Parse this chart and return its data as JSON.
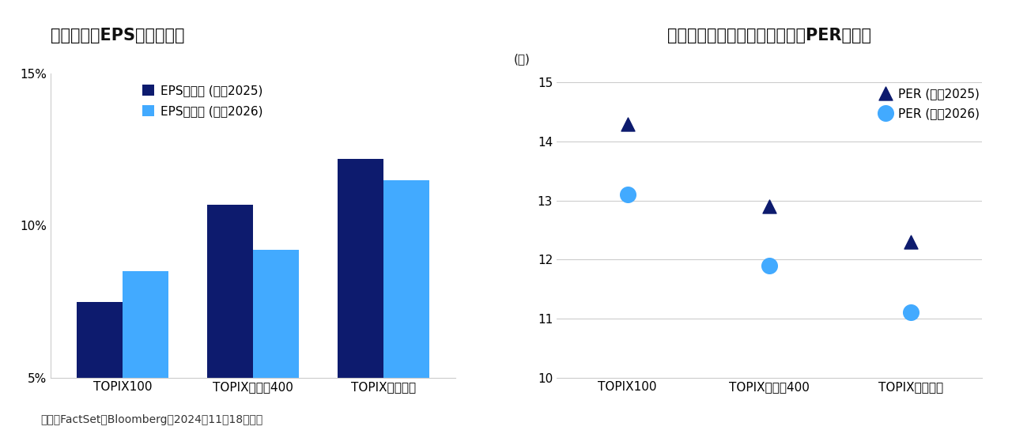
{
  "bar_categories": [
    "TOPIX100",
    "TOPIXミッド400",
    "TOPIXスモール"
  ],
  "eps_2025": [
    7.5,
    10.7,
    12.2
  ],
  "eps_2026": [
    8.5,
    9.2,
    11.5
  ],
  "bar_ylim": [
    5,
    15
  ],
  "bar_yticks": [
    5,
    10,
    15
  ],
  "bar_ytick_labels": [
    "5%",
    "10%",
    "15%"
  ],
  "bar_color_2025": "#0d1b6e",
  "bar_color_2026": "#42aaff",
  "bar_title": "企業規模別EPS成長率比較",
  "bar_legend_2025": "EPS成長率 (暦年2025)",
  "bar_legend_2026": "EPS成長率 (暦年2026)",
  "scatter_categories": [
    "TOPIX100",
    "TOPIXミッド400",
    "TOPIXスモール"
  ],
  "per_2025": [
    14.3,
    12.9,
    12.3
  ],
  "per_2026": [
    13.1,
    11.9,
    11.1
  ],
  "scatter_ylim": [
    10,
    15
  ],
  "scatter_yticks": [
    10,
    11,
    12,
    13,
    14,
    15
  ],
  "scatter_ylabel": "(倍)",
  "scatter_title": "企業規模別バリュエーション（PER）比較",
  "scatter_color_2025": "#0d1b6e",
  "scatter_color_2026": "#42aaff",
  "scatter_legend_2025": "PER (暦年2025)",
  "scatter_legend_2026": "PER (暦年2026)",
  "footer": "出所：FactSet、Bloomberg　2024年11月18日現在",
  "background_color": "#ffffff",
  "axis_line_color": "#cccccc",
  "title_fontsize": 15,
  "label_fontsize": 11,
  "tick_fontsize": 11,
  "legend_fontsize": 11,
  "footer_fontsize": 10
}
